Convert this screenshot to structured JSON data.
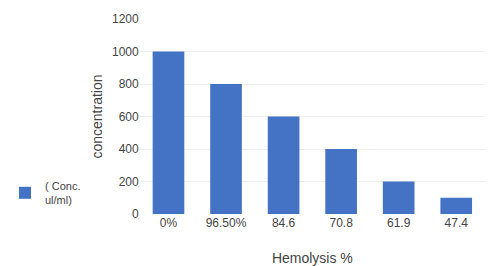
{
  "chart_data": {
    "type": "bar",
    "xlabel": "Hemolysis %",
    "ylabel": "concentration",
    "categories": [
      "0%",
      "96.50%",
      "84.6",
      "70.8",
      "61.9",
      "47.4"
    ],
    "series": [
      {
        "name": "( Conc.\nul/ml)",
        "color": "#4472C4",
        "values": [
          1000,
          800,
          600,
          400,
          200,
          100
        ]
      }
    ],
    "ylim": [
      0,
      1200
    ],
    "yticks": [
      0,
      200,
      400,
      600,
      800,
      1000,
      1200
    ],
    "grid": true,
    "legend": "left"
  }
}
